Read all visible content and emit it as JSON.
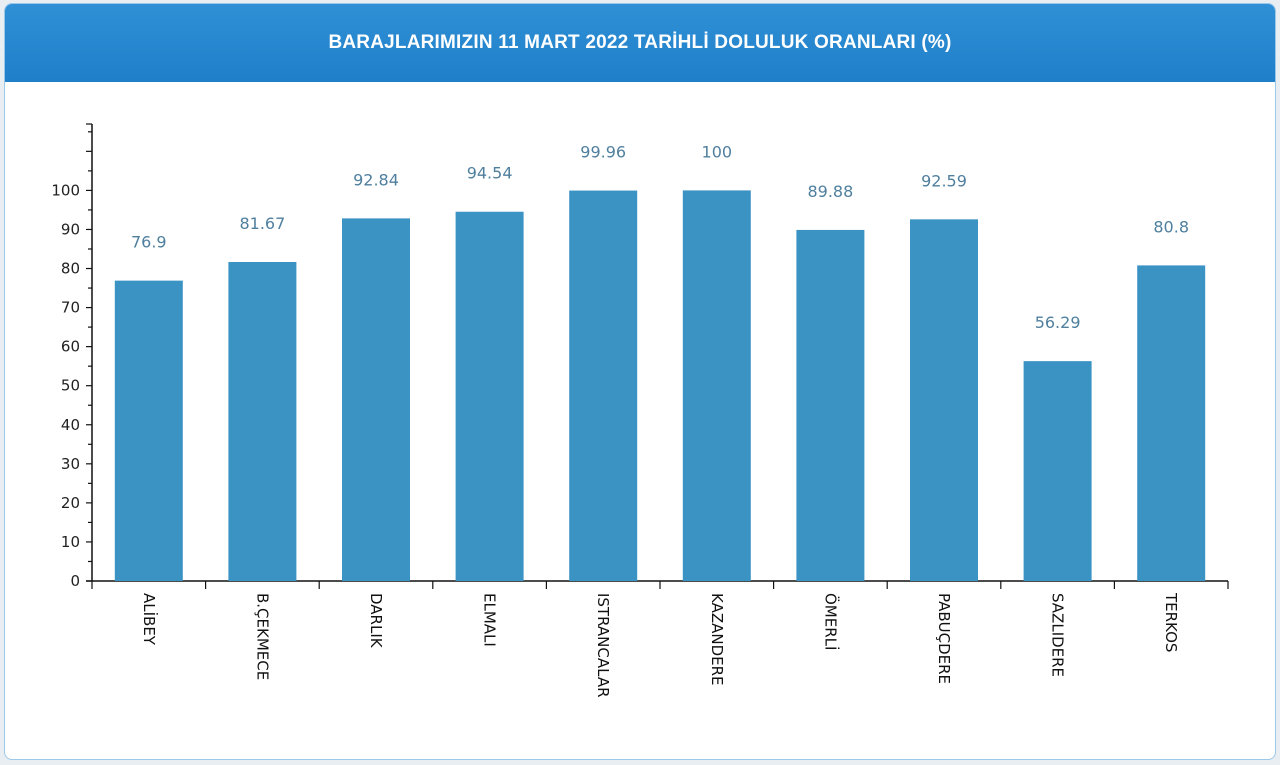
{
  "header": {
    "title": "BARAJLARIMIZIN 11 MART 2022 TARİHLİ DOLULUK ORANLARI (%)"
  },
  "colors": {
    "header_bg": "#2383cd",
    "bar": "#3b93c4",
    "value_label": "#4f7f9e",
    "axis": "#111111"
  },
  "chart_data": {
    "type": "bar",
    "title": "BARAJLARIMIZIN 11 MART 2022 TARİHLİ DOLULUK ORANLARI (%)",
    "categories": [
      "ALİBEY",
      "B.ÇEKMECE",
      "DARLIK",
      "ELMALI",
      "ISTRANCALAR",
      "KAZANDERE",
      "ÖMERLİ",
      "PABUÇDERE",
      "SAZLIDERE",
      "TERKOS"
    ],
    "values": [
      76.9,
      81.67,
      92.84,
      94.54,
      99.96,
      100,
      89.88,
      92.59,
      56.29,
      80.8
    ],
    "value_labels": [
      "76.9",
      "81.67",
      "92.84",
      "94.54",
      "99.96",
      "100",
      "89.88",
      "92.59",
      "56.29",
      "80.8"
    ],
    "yticks": [
      0,
      10,
      20,
      30,
      40,
      50,
      60,
      70,
      80,
      90,
      100
    ],
    "ylim": [
      0,
      117
    ],
    "xlabel": "",
    "ylabel": "",
    "grid": false,
    "legend": "none"
  }
}
